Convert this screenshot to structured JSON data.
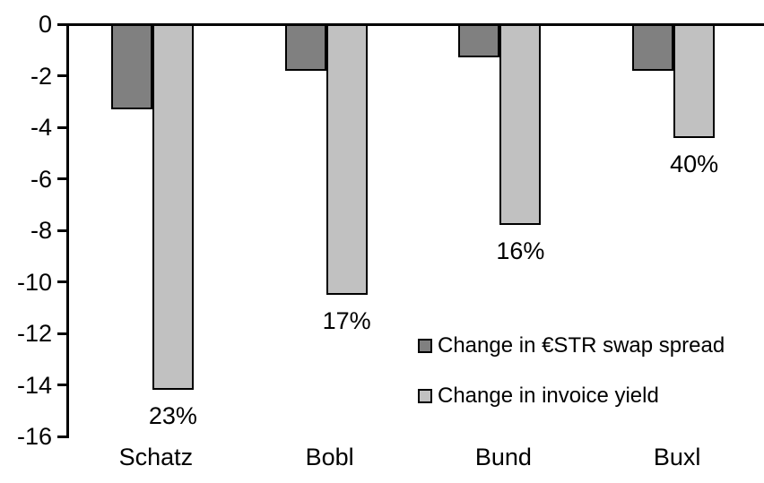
{
  "chart_data": {
    "type": "bar",
    "title": "",
    "xlabel": "",
    "ylabel": "",
    "categories": [
      "Schatz",
      "Bobl",
      "Bund",
      "Buxl"
    ],
    "series": [
      {
        "name": "Change in €STR swap spread",
        "color": "#808080",
        "values": [
          -3.3,
          -1.8,
          -1.3,
          -1.8
        ]
      },
      {
        "name": "Change in invoice yield",
        "color": "#c1c1c1",
        "values": [
          -14.2,
          -10.5,
          -7.8,
          -4.4
        ],
        "point_labels": [
          "23%",
          "17%",
          "16%",
          "40%"
        ]
      }
    ],
    "ylim": [
      -16,
      0
    ],
    "yticks": [
      0,
      -2,
      -4,
      -6,
      -8,
      -10,
      -12,
      -14,
      -16
    ],
    "grid": false,
    "legend_position": "inside-right"
  },
  "colors": {
    "axis": "#000000",
    "text": "#000000",
    "background": "#ffffff",
    "bar_border": "#000000"
  }
}
